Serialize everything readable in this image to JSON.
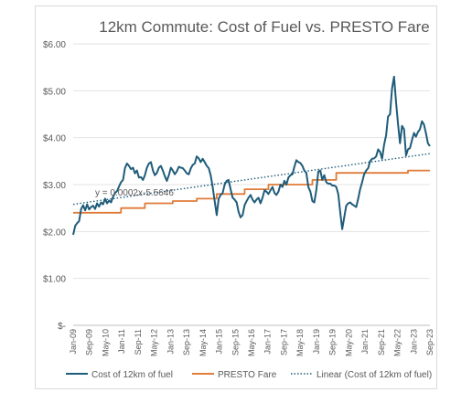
{
  "chart_data": {
    "type": "line",
    "title": "12km Commute: Cost of Fuel vs. PRESTO Fare",
    "xlabel": "",
    "ylabel": "",
    "ylim": [
      0,
      6
    ],
    "y_ticks": [
      "$-",
      "$1.00",
      "$2.00",
      "$3.00",
      "$4.00",
      "$5.00",
      "$6.00"
    ],
    "x_ticks": [
      "Jan-09",
      "Sep-09",
      "May-10",
      "Jan-11",
      "Sep-11",
      "May-12",
      "Jan-13",
      "Sep-13",
      "May-14",
      "Jan-15",
      "Sep-15",
      "May-16",
      "Jan-17",
      "Sep-17",
      "May-18",
      "Jan-19",
      "Sep-19",
      "May-20",
      "Jan-21",
      "Sep-21",
      "May-22",
      "Jan-23",
      "Sep-23"
    ],
    "x_range": [
      "2009-01",
      "2023-12"
    ],
    "grid": "horizontal",
    "legend_position": "bottom",
    "annotation": "y = 0.0002x-5.5646",
    "series": [
      {
        "name": "Cost of 12km of fuel",
        "color": "#1f5c7a",
        "points": [
          [
            "2009-01",
            1.93
          ],
          [
            "2009-02",
            2.12
          ],
          [
            "2009-03",
            2.18
          ],
          [
            "2009-04",
            2.22
          ],
          [
            "2009-05",
            2.48
          ],
          [
            "2009-06",
            2.56
          ],
          [
            "2009-07",
            2.45
          ],
          [
            "2009-08",
            2.58
          ],
          [
            "2009-09",
            2.47
          ],
          [
            "2009-10",
            2.52
          ],
          [
            "2009-11",
            2.55
          ],
          [
            "2009-12",
            2.48
          ],
          [
            "2010-01",
            2.6
          ],
          [
            "2010-02",
            2.53
          ],
          [
            "2010-03",
            2.62
          ],
          [
            "2010-04",
            2.58
          ],
          [
            "2010-05",
            2.7
          ],
          [
            "2010-06",
            2.6
          ],
          [
            "2010-07",
            2.66
          ],
          [
            "2010-08",
            2.62
          ],
          [
            "2010-09",
            2.74
          ],
          [
            "2010-10",
            2.82
          ],
          [
            "2010-11",
            2.86
          ],
          [
            "2010-12",
            2.96
          ],
          [
            "2011-01",
            3.05
          ],
          [
            "2011-02",
            3.1
          ],
          [
            "2011-03",
            3.35
          ],
          [
            "2011-04",
            3.45
          ],
          [
            "2011-05",
            3.4
          ],
          [
            "2011-06",
            3.33
          ],
          [
            "2011-07",
            3.36
          ],
          [
            "2011-08",
            3.24
          ],
          [
            "2011-09",
            3.3
          ],
          [
            "2011-10",
            3.15
          ],
          [
            "2011-11",
            3.16
          ],
          [
            "2011-12",
            3.1
          ],
          [
            "2012-01",
            3.2
          ],
          [
            "2012-02",
            3.36
          ],
          [
            "2012-03",
            3.45
          ],
          [
            "2012-04",
            3.48
          ],
          [
            "2012-05",
            3.3
          ],
          [
            "2012-06",
            3.2
          ],
          [
            "2012-07",
            3.25
          ],
          [
            "2012-08",
            3.36
          ],
          [
            "2012-09",
            3.4
          ],
          [
            "2012-10",
            3.3
          ],
          [
            "2012-11",
            3.18
          ],
          [
            "2012-12",
            3.08
          ],
          [
            "2013-01",
            3.2
          ],
          [
            "2013-02",
            3.36
          ],
          [
            "2013-03",
            3.3
          ],
          [
            "2013-04",
            3.22
          ],
          [
            "2013-05",
            3.28
          ],
          [
            "2013-06",
            3.38
          ],
          [
            "2013-07",
            3.36
          ],
          [
            "2013-08",
            3.35
          ],
          [
            "2013-09",
            3.3
          ],
          [
            "2013-10",
            3.24
          ],
          [
            "2013-11",
            3.22
          ],
          [
            "2013-12",
            3.34
          ],
          [
            "2014-01",
            3.42
          ],
          [
            "2014-02",
            3.45
          ],
          [
            "2014-03",
            3.6
          ],
          [
            "2014-04",
            3.56
          ],
          [
            "2014-05",
            3.48
          ],
          [
            "2014-06",
            3.55
          ],
          [
            "2014-07",
            3.48
          ],
          [
            "2014-08",
            3.4
          ],
          [
            "2014-09",
            3.35
          ],
          [
            "2014-10",
            3.2
          ],
          [
            "2014-11",
            2.95
          ],
          [
            "2014-12",
            2.65
          ],
          [
            "2015-01",
            2.35
          ],
          [
            "2015-02",
            2.7
          ],
          [
            "2015-03",
            2.78
          ],
          [
            "2015-04",
            2.82
          ],
          [
            "2015-05",
            3.0
          ],
          [
            "2015-06",
            3.08
          ],
          [
            "2015-07",
            3.1
          ],
          [
            "2015-08",
            2.9
          ],
          [
            "2015-09",
            2.72
          ],
          [
            "2015-10",
            2.68
          ],
          [
            "2015-11",
            2.62
          ],
          [
            "2015-12",
            2.42
          ],
          [
            "2016-01",
            2.3
          ],
          [
            "2016-02",
            2.35
          ],
          [
            "2016-03",
            2.56
          ],
          [
            "2016-04",
            2.65
          ],
          [
            "2016-05",
            2.72
          ],
          [
            "2016-06",
            2.78
          ],
          [
            "2016-07",
            2.68
          ],
          [
            "2016-08",
            2.62
          ],
          [
            "2016-09",
            2.68
          ],
          [
            "2016-10",
            2.72
          ],
          [
            "2016-11",
            2.6
          ],
          [
            "2016-12",
            2.72
          ],
          [
            "2017-01",
            2.88
          ],
          [
            "2017-02",
            2.85
          ],
          [
            "2017-03",
            2.8
          ],
          [
            "2017-04",
            2.88
          ],
          [
            "2017-05",
            2.95
          ],
          [
            "2017-06",
            2.82
          ],
          [
            "2017-07",
            2.78
          ],
          [
            "2017-08",
            2.85
          ],
          [
            "2017-09",
            3.0
          ],
          [
            "2017-10",
            2.95
          ],
          [
            "2017-11",
            3.08
          ],
          [
            "2017-12",
            3.0
          ],
          [
            "2018-01",
            3.15
          ],
          [
            "2018-02",
            3.2
          ],
          [
            "2018-03",
            3.22
          ],
          [
            "2018-04",
            3.38
          ],
          [
            "2018-05",
            3.52
          ],
          [
            "2018-06",
            3.48
          ],
          [
            "2018-07",
            3.46
          ],
          [
            "2018-08",
            3.4
          ],
          [
            "2018-09",
            3.3
          ],
          [
            "2018-10",
            3.25
          ],
          [
            "2018-11",
            2.95
          ],
          [
            "2018-12",
            2.85
          ],
          [
            "2019-01",
            2.65
          ],
          [
            "2019-02",
            2.62
          ],
          [
            "2019-03",
            2.88
          ],
          [
            "2019-04",
            3.28
          ],
          [
            "2019-05",
            3.3
          ],
          [
            "2019-06",
            3.1
          ],
          [
            "2019-07",
            3.2
          ],
          [
            "2019-08",
            3.05
          ],
          [
            "2019-09",
            3.02
          ],
          [
            "2019-10",
            3.02
          ],
          [
            "2019-11",
            2.98
          ],
          [
            "2019-12",
            2.98
          ],
          [
            "2020-01",
            2.95
          ],
          [
            "2020-02",
            2.8
          ],
          [
            "2020-03",
            2.4
          ],
          [
            "2020-04",
            2.05
          ],
          [
            "2020-05",
            2.3
          ],
          [
            "2020-06",
            2.55
          ],
          [
            "2020-07",
            2.6
          ],
          [
            "2020-08",
            2.62
          ],
          [
            "2020-09",
            2.58
          ],
          [
            "2020-10",
            2.55
          ],
          [
            "2020-11",
            2.52
          ],
          [
            "2020-12",
            2.7
          ],
          [
            "2021-01",
            2.9
          ],
          [
            "2021-02",
            3.05
          ],
          [
            "2021-03",
            3.22
          ],
          [
            "2021-04",
            3.3
          ],
          [
            "2021-05",
            3.35
          ],
          [
            "2021-06",
            3.5
          ],
          [
            "2021-07",
            3.55
          ],
          [
            "2021-08",
            3.56
          ],
          [
            "2021-09",
            3.6
          ],
          [
            "2021-10",
            3.75
          ],
          [
            "2021-11",
            3.7
          ],
          [
            "2021-12",
            3.55
          ],
          [
            "2022-01",
            3.85
          ],
          [
            "2022-02",
            4.05
          ],
          [
            "2022-03",
            4.45
          ],
          [
            "2022-04",
            4.5
          ],
          [
            "2022-05",
            5.05
          ],
          [
            "2022-06",
            5.3
          ],
          [
            "2022-07",
            4.75
          ],
          [
            "2022-08",
            4.3
          ],
          [
            "2022-09",
            3.88
          ],
          [
            "2022-10",
            4.25
          ],
          [
            "2022-11",
            4.18
          ],
          [
            "2022-12",
            3.62
          ],
          [
            "2023-01",
            3.75
          ],
          [
            "2023-02",
            3.78
          ],
          [
            "2023-03",
            3.95
          ],
          [
            "2023-04",
            4.1
          ],
          [
            "2023-05",
            4.02
          ],
          [
            "2023-06",
            4.12
          ],
          [
            "2023-07",
            4.18
          ],
          [
            "2023-08",
            4.35
          ],
          [
            "2023-09",
            4.28
          ],
          [
            "2023-10",
            4.1
          ],
          [
            "2023-11",
            3.88
          ],
          [
            "2023-12",
            3.82
          ]
        ]
      },
      {
        "name": "PRESTO Fare",
        "color": "#e07b39",
        "points": [
          [
            "2009-01",
            2.4
          ],
          [
            "2009-06",
            2.4
          ],
          [
            "2011-01",
            2.4
          ],
          [
            "2011-01",
            2.5
          ],
          [
            "2012-01",
            2.5
          ],
          [
            "2012-01",
            2.6
          ],
          [
            "2013-03",
            2.6
          ],
          [
            "2013-03",
            2.65
          ],
          [
            "2014-03",
            2.65
          ],
          [
            "2014-03",
            2.7
          ],
          [
            "2015-01",
            2.7
          ],
          [
            "2015-01",
            2.8
          ],
          [
            "2016-03",
            2.8
          ],
          [
            "2016-03",
            2.9
          ],
          [
            "2017-03",
            2.9
          ],
          [
            "2017-03",
            3.0
          ],
          [
            "2019-01",
            3.0
          ],
          [
            "2019-01",
            3.1
          ],
          [
            "2020-01",
            3.1
          ],
          [
            "2020-01",
            3.25
          ],
          [
            "2023-01",
            3.25
          ],
          [
            "2023-01",
            3.3
          ],
          [
            "2023-12",
            3.3
          ]
        ]
      },
      {
        "name": "Linear (Cost of 12km of fuel)",
        "color": "#1f5c7a",
        "style": "dotted",
        "points": [
          [
            "2009-01",
            2.58
          ],
          [
            "2023-12",
            3.66
          ]
        ]
      }
    ]
  }
}
